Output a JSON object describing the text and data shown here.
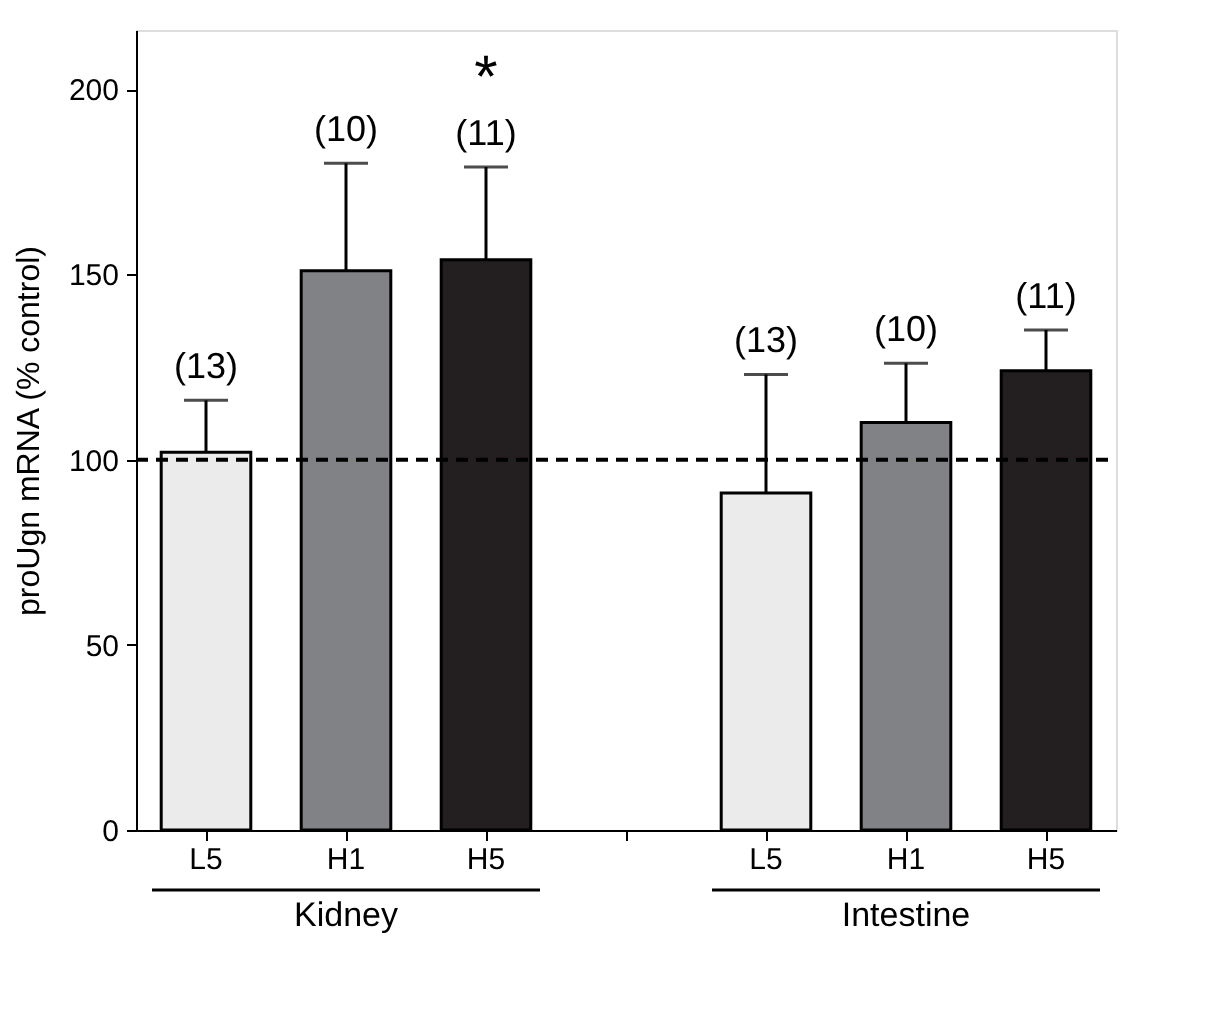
{
  "chart_data": {
    "type": "bar",
    "ylabel": "proUgn mRNA (% control)",
    "categories": [
      "L5",
      "H1",
      "H5",
      null,
      "L5",
      "H1",
      "H5"
    ],
    "values": [
      102,
      151,
      154,
      null,
      91,
      110,
      124
    ],
    "colors": [
      "#ebebeb",
      "#808285",
      "#231f20",
      null,
      "#ebebeb",
      "#808285",
      "#231f20"
    ],
    "errors": [
      [
        102,
        116
      ],
      [
        151,
        180
      ],
      [
        154,
        179
      ],
      null,
      [
        91,
        123
      ],
      [
        110,
        126
      ],
      [
        124,
        135
      ]
    ],
    "ylim": [
      0,
      216
    ],
    "yticks": [
      0,
      50,
      100,
      150,
      200
    ],
    "grid": false,
    "ref_lines": [
      {
        "axis": "y",
        "value": 100,
        "line_style": "dashed",
        "color": "#000000"
      }
    ],
    "annotations": [
      "(13)",
      "(10)",
      "(11)",
      "(13)",
      "(10)",
      "(11)",
      "*",
      "Kidney",
      "Intestine"
    ]
  }
}
